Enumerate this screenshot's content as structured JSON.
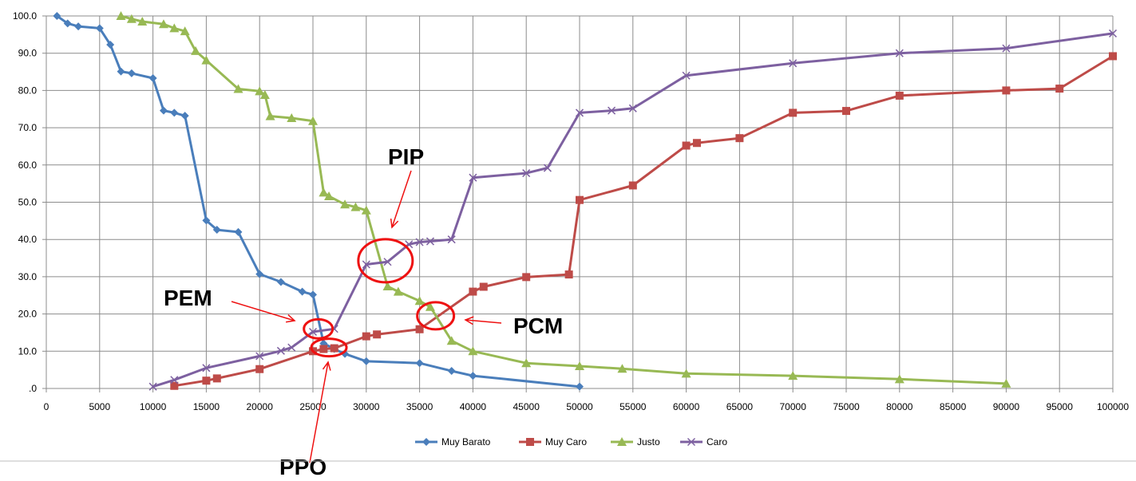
{
  "chart_data": {
    "type": "line",
    "title": "",
    "xlabel": "",
    "ylabel": "",
    "xlim": [
      0,
      100000
    ],
    "ylim": [
      0,
      100
    ],
    "grid": true,
    "legend_position": "bottom",
    "x_ticks": [
      "0",
      "5000",
      "10000",
      "15000",
      "20000",
      "25000",
      "30000",
      "35000",
      "40000",
      "45000",
      "50000",
      "55000",
      "60000",
      "65000",
      "70000",
      "75000",
      "80000",
      "85000",
      "90000",
      "95000",
      "100000"
    ],
    "y_ticks": [
      ".0",
      "10.0",
      "20.0",
      "30.0",
      "40.0",
      "50.0",
      "60.0",
      "70.0",
      "80.0",
      "90.0",
      "100.0"
    ],
    "series": [
      {
        "name": "Muy Barato",
        "color": "#4a7ebb",
        "marker": "diamond",
        "points": [
          [
            1000,
            100
          ],
          [
            2000,
            98
          ],
          [
            3000,
            97.2
          ],
          [
            5000,
            96.7
          ],
          [
            6000,
            92.3
          ],
          [
            7000,
            85.1
          ],
          [
            8000,
            84.6
          ],
          [
            10000,
            83.3
          ],
          [
            11000,
            74.6
          ],
          [
            12000,
            74
          ],
          [
            13000,
            73.2
          ],
          [
            15000,
            45.1
          ],
          [
            16000,
            42.6
          ],
          [
            18000,
            42
          ],
          [
            20000,
            30.7
          ],
          [
            22000,
            28.6
          ],
          [
            24000,
            26
          ],
          [
            25000,
            25.2
          ],
          [
            26000,
            12.1
          ],
          [
            27000,
            10.6
          ],
          [
            28000,
            9.3
          ],
          [
            30000,
            7.3
          ],
          [
            35000,
            6.8
          ],
          [
            38000,
            4.7
          ],
          [
            40000,
            3.4
          ],
          [
            50000,
            0.5
          ]
        ]
      },
      {
        "name": "Muy Caro",
        "color": "#be4b48",
        "marker": "square",
        "points": [
          [
            12000,
            0.7
          ],
          [
            15000,
            2.1
          ],
          [
            16000,
            2.7
          ],
          [
            20000,
            5.2
          ],
          [
            25000,
            10
          ],
          [
            26000,
            10.6
          ],
          [
            27000,
            10.8
          ],
          [
            30000,
            14
          ],
          [
            31000,
            14.5
          ],
          [
            35000,
            15.9
          ],
          [
            40000,
            26
          ],
          [
            41000,
            27.3
          ],
          [
            45000,
            29.9
          ],
          [
            49000,
            30.6
          ],
          [
            50000,
            50.6
          ],
          [
            55000,
            54.5
          ],
          [
            60000,
            65.2
          ],
          [
            61000,
            65.9
          ],
          [
            65000,
            67.2
          ],
          [
            70000,
            74
          ],
          [
            75000,
            74.5
          ],
          [
            80000,
            78.6
          ],
          [
            90000,
            80
          ],
          [
            95000,
            80.5
          ],
          [
            100000,
            89.2
          ]
        ]
      },
      {
        "name": "Justo",
        "color": "#98b954",
        "marker": "triangle",
        "points": [
          [
            7000,
            100
          ],
          [
            8000,
            99.2
          ],
          [
            9000,
            98.5
          ],
          [
            11000,
            97.8
          ],
          [
            12000,
            96.7
          ],
          [
            13000,
            95.9
          ],
          [
            14000,
            90.6
          ],
          [
            15000,
            88.1
          ],
          [
            18000,
            80.4
          ],
          [
            20000,
            79.8
          ],
          [
            20500,
            78.8
          ],
          [
            21000,
            73.1
          ],
          [
            23000,
            72.6
          ],
          [
            25000,
            71.8
          ],
          [
            26000,
            52.6
          ],
          [
            26500,
            51.6
          ],
          [
            28000,
            49.4
          ],
          [
            29000,
            48.7
          ],
          [
            30000,
            47.8
          ],
          [
            32000,
            27.4
          ],
          [
            33000,
            26
          ],
          [
            35000,
            23.5
          ],
          [
            36000,
            21.9
          ],
          [
            38000,
            12.8
          ],
          [
            40000,
            10
          ],
          [
            45000,
            6.8
          ],
          [
            50000,
            6
          ],
          [
            54000,
            5.3
          ],
          [
            60000,
            4
          ],
          [
            70000,
            3.4
          ],
          [
            80000,
            2.5
          ],
          [
            90000,
            1.3
          ]
        ]
      },
      {
        "name": "Caro",
        "color": "#7d60a0",
        "marker": "x",
        "points": [
          [
            10000,
            0.5
          ],
          [
            12000,
            2.3
          ],
          [
            15000,
            5.5
          ],
          [
            20000,
            8.7
          ],
          [
            22000,
            10.1
          ],
          [
            23000,
            11
          ],
          [
            25000,
            15.2
          ],
          [
            27000,
            16
          ],
          [
            30000,
            33.3
          ],
          [
            32000,
            34
          ],
          [
            34000,
            38.7
          ],
          [
            35000,
            39.3
          ],
          [
            36000,
            39.5
          ],
          [
            38000,
            40
          ],
          [
            40000,
            56.6
          ],
          [
            45000,
            57.8
          ],
          [
            47000,
            59.2
          ],
          [
            50000,
            74
          ],
          [
            53000,
            74.6
          ],
          [
            55000,
            75.2
          ],
          [
            60000,
            84
          ],
          [
            70000,
            87.3
          ],
          [
            80000,
            90
          ],
          [
            90000,
            91.3
          ],
          [
            100000,
            95.3
          ]
        ]
      }
    ],
    "annotations": [
      {
        "label": "PIP",
        "circle_center": [
          31800,
          34.3
        ]
      },
      {
        "label": "PEM",
        "circle_center": [
          25500,
          16
        ]
      },
      {
        "label": "PPO",
        "circle_center": [
          26500,
          11
        ]
      },
      {
        "label": "PCM",
        "circle_center": [
          36500,
          19.5
        ]
      }
    ]
  },
  "annotation_color": "#ee1111"
}
